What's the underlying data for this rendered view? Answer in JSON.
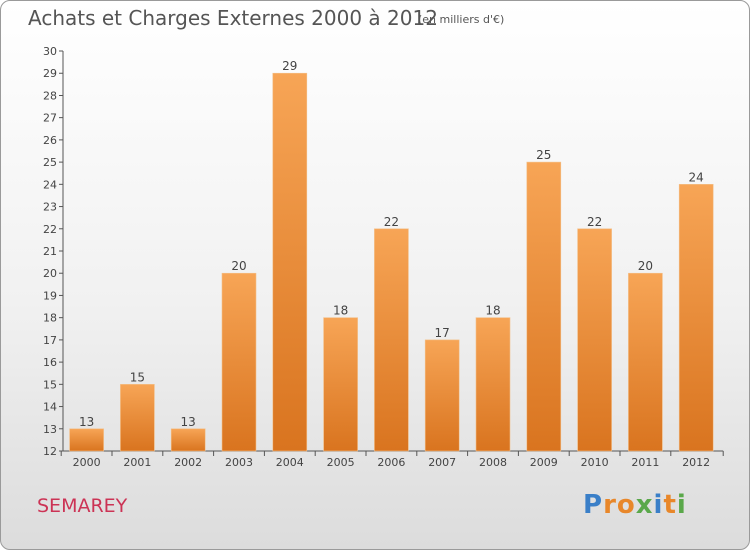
{
  "chart_data": {
    "type": "bar",
    "title": "Achats et Charges Externes 2000 à 2012",
    "unit_note": "(en milliers d'€)",
    "categories": [
      "2000",
      "2001",
      "2002",
      "2003",
      "2004",
      "2005",
      "2006",
      "2007",
      "2008",
      "2009",
      "2010",
      "2011",
      "2012"
    ],
    "values": [
      13,
      15,
      13,
      20,
      29,
      18,
      22,
      17,
      18,
      25,
      22,
      20,
      24
    ],
    "ylim": [
      12,
      30
    ],
    "yticks": [
      "12",
      "13",
      "14",
      "15",
      "16",
      "17",
      "18",
      "19",
      "20",
      "21",
      "22",
      "23",
      "24",
      "25",
      "26",
      "27",
      "28",
      "29",
      "30"
    ],
    "xlabel": "",
    "ylabel": "",
    "grid": false,
    "colors": {
      "bar_top": "#f7a556",
      "bar_bottom": "#d9741f",
      "axis": "#555555"
    }
  },
  "footer": {
    "commune": "SEMAREY",
    "logo": [
      "P",
      "r",
      "o",
      "x",
      "i",
      "t",
      "i"
    ],
    "logo_colors": [
      "#3a7fc8",
      "#e8872a",
      "#e8872a",
      "#5aa84a",
      "#3a7fc8",
      "#e8872a",
      "#5aa84a"
    ]
  }
}
